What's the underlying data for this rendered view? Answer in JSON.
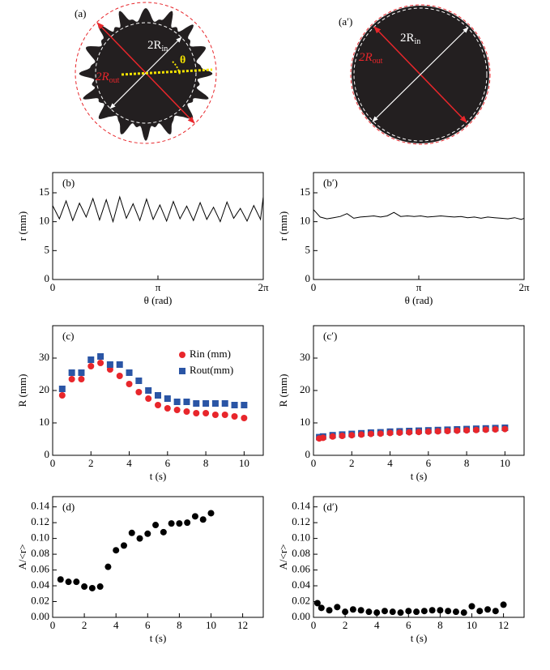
{
  "images": [
    {
      "label": "(a)",
      "outer": {
        "main": "2R",
        "sub": "out"
      },
      "inner": {
        "main": "2R",
        "sub": "in"
      },
      "angle": "θ"
    },
    {
      "label": "(a′)",
      "outer": {
        "main": "2R",
        "sub": "out"
      },
      "inner": {
        "main": "2R",
        "sub": "in"
      }
    }
  ],
  "chart_data": [
    {
      "type": "line",
      "panel_label": "(b)",
      "xlabel": "θ (rad)",
      "ylabel": "r (mm)",
      "color": "#000000",
      "x": [
        0,
        0.2,
        0.4,
        0.6,
        0.8,
        1.0,
        1.2,
        1.4,
        1.6,
        1.8,
        2.0,
        2.2,
        2.4,
        2.6,
        2.8,
        3.0,
        3.2,
        3.4,
        3.6,
        3.8,
        4.0,
        4.2,
        4.4,
        4.6,
        4.8,
        5.0,
        5.2,
        5.4,
        5.6,
        5.8,
        6.0,
        6.2,
        6.28
      ],
      "values": [
        12.8,
        10.5,
        13.6,
        10.2,
        13.2,
        10.8,
        14.0,
        10.3,
        13.8,
        10.0,
        14.3,
        10.6,
        13.1,
        10.2,
        13.9,
        10.4,
        12.9,
        10.1,
        13.5,
        10.5,
        12.7,
        10.2,
        13.3,
        10.4,
        12.5,
        10.0,
        13.4,
        10.6,
        12.3,
        10.1,
        12.8,
        10.4,
        14.2
      ],
      "xlim": [
        0,
        6.28319
      ],
      "xticks": [
        0,
        {
          "value": 3.14159,
          "label": "π"
        },
        {
          "value": 6.28319,
          "label": "2π"
        }
      ],
      "ylim": [
        0,
        18.5
      ],
      "yticks": [
        0,
        5,
        10,
        15
      ]
    },
    {
      "type": "line",
      "panel_label": "(b′)",
      "xlabel": "θ (rad)",
      "ylabel": "r (mm)",
      "color": "#000000",
      "x": [
        0,
        0.2,
        0.4,
        0.6,
        0.8,
        1.0,
        1.2,
        1.4,
        1.6,
        1.8,
        2.0,
        2.2,
        2.4,
        2.6,
        2.8,
        3.0,
        3.2,
        3.4,
        3.6,
        3.8,
        4.0,
        4.2,
        4.4,
        4.6,
        4.8,
        5.0,
        5.2,
        5.4,
        5.6,
        5.8,
        6.0,
        6.2,
        6.28
      ],
      "values": [
        12.1,
        10.8,
        10.5,
        10.7,
        10.9,
        11.4,
        10.6,
        10.8,
        10.9,
        11.0,
        10.8,
        11.0,
        11.6,
        10.9,
        11.0,
        10.9,
        11.0,
        10.8,
        10.9,
        11.0,
        10.9,
        10.8,
        10.9,
        10.7,
        10.8,
        10.6,
        10.8,
        10.7,
        10.6,
        10.5,
        10.7,
        10.4,
        10.6
      ],
      "xlim": [
        0,
        6.28319
      ],
      "xticks": [
        0,
        {
          "value": 3.14159,
          "label": "π"
        },
        {
          "value": 6.28319,
          "label": "2π"
        }
      ],
      "ylim": [
        0,
        18.5
      ],
      "yticks": [
        0,
        5,
        10,
        15
      ]
    },
    {
      "type": "scatter",
      "panel_label": "(c)",
      "xlabel": "t (s)",
      "ylabel": "R (mm)",
      "legend": "upper right",
      "x": [
        0.5,
        1,
        1.5,
        2,
        2.5,
        3,
        3.5,
        4,
        4.5,
        5,
        5.5,
        6,
        6.5,
        7,
        7.5,
        8,
        8.5,
        9,
        9.5,
        10
      ],
      "series": [
        {
          "name": "Rin (mm)",
          "color": "#e8262b",
          "marker": "circle",
          "values": [
            18.5,
            23.5,
            23.5,
            27.5,
            28.5,
            26.5,
            24.5,
            22,
            19.5,
            17.5,
            15.5,
            14.5,
            14,
            13.5,
            13,
            13,
            12.5,
            12.5,
            12,
            11.5
          ]
        },
        {
          "name": "Rout(mm)",
          "color": "#2a55a5",
          "marker": "square",
          "values": [
            20.5,
            25.5,
            25.5,
            29.5,
            30.5,
            28,
            28,
            25.5,
            23,
            20,
            18.5,
            17.5,
            16.5,
            16.5,
            16,
            16,
            16,
            16,
            15.5,
            15.5
          ]
        }
      ],
      "xlim": [
        0,
        11
      ],
      "xticks": [
        0,
        2,
        4,
        6,
        8,
        10
      ],
      "ylim": [
        0,
        40
      ],
      "yticks": [
        0,
        10,
        20,
        30
      ]
    },
    {
      "type": "scatter",
      "panel_label": "(c′)",
      "xlabel": "t (s)",
      "ylabel": "R (mm)",
      "x": [
        0.3,
        0.5,
        1,
        1.5,
        2,
        2.5,
        3,
        3.5,
        4,
        4.5,
        5,
        5.5,
        6,
        6.5,
        7,
        7.5,
        8,
        8.5,
        9,
        9.5,
        10
      ],
      "series": [
        {
          "color": "#2a55a5",
          "marker": "square",
          "values": [
            5.6,
            5.8,
            6.2,
            6.4,
            6.6,
            6.8,
            7.0,
            7.1,
            7.3,
            7.4,
            7.5,
            7.6,
            7.7,
            7.8,
            7.9,
            8.0,
            8.1,
            8.2,
            8.3,
            8.4,
            8.5
          ]
        },
        {
          "color": "#e8262b",
          "marker": "circle",
          "values": [
            5.2,
            5.4,
            5.8,
            6.0,
            6.2,
            6.4,
            6.6,
            6.7,
            6.9,
            7.0,
            7.1,
            7.2,
            7.3,
            7.4,
            7.5,
            7.6,
            7.7,
            7.8,
            7.9,
            8.0,
            8.1
          ]
        }
      ],
      "xlim": [
        0,
        11
      ],
      "xticks": [
        0,
        2,
        4,
        6,
        8,
        10
      ],
      "ylim": [
        0,
        40
      ],
      "yticks": [
        0,
        10,
        20,
        30
      ]
    },
    {
      "type": "scatter",
      "panel_label": "(d)",
      "xlabel": "t (s)",
      "ylabel": "A/<r>",
      "color": "#000000",
      "x": [
        0.5,
        1,
        1.5,
        2,
        2.5,
        3,
        3.5,
        4,
        4.5,
        5,
        5.5,
        6,
        6.5,
        7,
        7.5,
        8,
        8.5,
        9,
        9.5,
        10
      ],
      "values": [
        0.048,
        0.045,
        0.045,
        0.039,
        0.037,
        0.039,
        0.064,
        0.085,
        0.091,
        0.107,
        0.1,
        0.106,
        0.117,
        0.108,
        0.119,
        0.119,
        0.12,
        0.128,
        0.124,
        0.132
      ],
      "xlim": [
        0,
        13.3
      ],
      "xticks": [
        0,
        2,
        4,
        6,
        8,
        10,
        12
      ],
      "ylim": [
        0,
        0.153
      ],
      "yticks": [
        {
          "value": 0,
          "label": "0.00"
        },
        0.02,
        0.04,
        0.06,
        0.08,
        {
          "value": 0.1,
          "label": "0.10"
        },
        0.12,
        0.14
      ]
    },
    {
      "type": "scatter",
      "panel_label": "(d′)",
      "xlabel": "t (s)",
      "ylabel": "A/<r>",
      "color": "#000000",
      "x": [
        0.25,
        0.5,
        1,
        1.5,
        2,
        2.5,
        3,
        3.5,
        4,
        4.5,
        5,
        5.5,
        6,
        6.5,
        7,
        7.5,
        8,
        8.5,
        9,
        9.5,
        10,
        10.5,
        11,
        11.5,
        12
      ],
      "values": [
        0.018,
        0.012,
        0.009,
        0.013,
        0.007,
        0.01,
        0.009,
        0.007,
        0.006,
        0.008,
        0.007,
        0.006,
        0.008,
        0.007,
        0.008,
        0.009,
        0.009,
        0.008,
        0.007,
        0.006,
        0.014,
        0.008,
        0.01,
        0.008,
        0.016
      ],
      "xlim": [
        0,
        13.3
      ],
      "xticks": [
        0,
        2,
        4,
        6,
        8,
        10,
        12
      ],
      "ylim": [
        0,
        0.153
      ],
      "yticks": [
        {
          "value": 0,
          "label": "0.00"
        },
        0.02,
        0.04,
        0.06,
        0.08,
        {
          "value": 0.1,
          "label": "0.10"
        },
        0.12,
        0.14
      ]
    }
  ]
}
